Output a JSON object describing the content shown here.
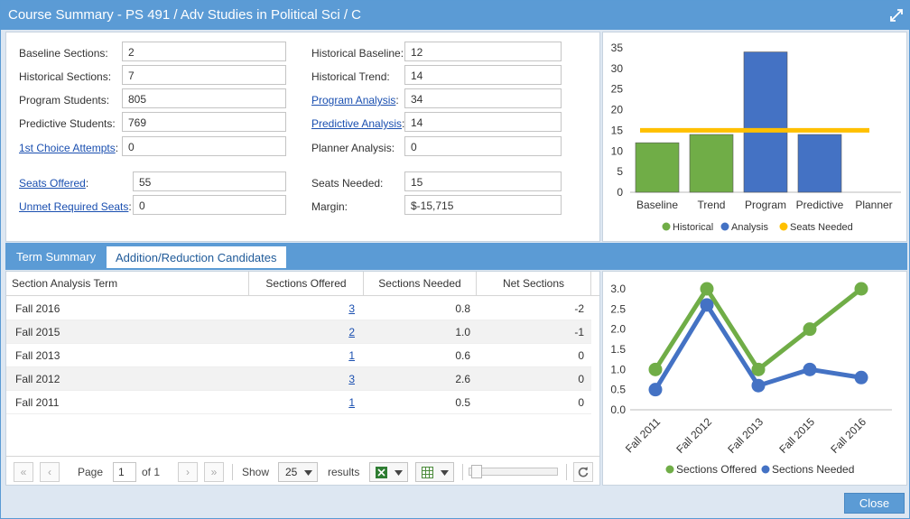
{
  "window": {
    "title": "Course Summary - PS 491 / Adv Studies in Political Sci / C"
  },
  "summary": {
    "left": [
      {
        "label": "Baseline Sections:",
        "value": "2",
        "link": false
      },
      {
        "label": "Historical Sections:",
        "value": "7",
        "link": false
      },
      {
        "label": "Program Students:",
        "value": "805",
        "link": false
      },
      {
        "label": "Predictive Students:",
        "value": "769",
        "link": false
      },
      {
        "label": "1st Choice Attempts",
        "value": "0",
        "link": true,
        "suffix": ":"
      },
      {
        "label": "Seats Offered",
        "value": "55",
        "link": true,
        "suffix": ":"
      },
      {
        "label": "Unmet Required Seats",
        "value": "0",
        "link": true,
        "suffix": ":"
      }
    ],
    "right": [
      {
        "label": "Historical Baseline:",
        "value": "12",
        "link": false
      },
      {
        "label": "Historical Trend:",
        "value": "14",
        "link": false
      },
      {
        "label": "Program Analysis",
        "value": "34",
        "link": true,
        "suffix": ":"
      },
      {
        "label": "Predictive Analysis",
        "value": "14",
        "link": true,
        "suffix": ":"
      },
      {
        "label": "Planner Analysis:",
        "value": "0",
        "link": false
      },
      {
        "label": "Seats Needed:",
        "value": "15",
        "link": false
      },
      {
        "label": "Margin:",
        "value": "$-15,715",
        "link": false
      }
    ]
  },
  "tabs": {
    "term_summary": "Term Summary",
    "candidates": "Addition/Reduction Candidates"
  },
  "grid": {
    "headers": [
      "Section Analysis Term",
      "Sections Offered",
      "Sections Needed",
      "Net Sections"
    ],
    "rows": [
      {
        "term": "Fall 2016",
        "offered": "3",
        "needed": "0.8",
        "net": "-2"
      },
      {
        "term": "Fall 2015",
        "offered": "2",
        "needed": "1.0",
        "net": "-1"
      },
      {
        "term": "Fall 2013",
        "offered": "1",
        "needed": "0.6",
        "net": "0"
      },
      {
        "term": "Fall 2012",
        "offered": "3",
        "needed": "2.6",
        "net": "0"
      },
      {
        "term": "Fall 2011",
        "offered": "1",
        "needed": "0.5",
        "net": "0"
      }
    ]
  },
  "pager": {
    "first": "«",
    "prev": "‹",
    "next": "›",
    "last": "»",
    "page_label": "Page",
    "page_value": "1",
    "of_label": "of 1",
    "show_label": "Show",
    "page_size": "25",
    "results_label": "results",
    "excel_icon": "excel-icon",
    "columns_icon": "columns-icon",
    "refresh_icon": "refresh-icon"
  },
  "close_label": "Close",
  "colors": {
    "accent": "#5b9bd5",
    "green": "#70ad47",
    "blue": "#4472c4",
    "gold": "#ffc000"
  },
  "chart_data": [
    {
      "type": "bar",
      "categories": [
        "Baseline",
        "Trend",
        "Program",
        "Predictive",
        "Planner"
      ],
      "values": [
        12,
        14,
        34,
        14,
        0
      ],
      "category_series": [
        "Historical",
        "Historical",
        "Analysis",
        "Analysis",
        "Analysis"
      ],
      "reference_line": {
        "name": "Seats Needed",
        "value": 15
      },
      "ylim": [
        0,
        35
      ],
      "yticks": [
        0,
        5,
        10,
        15,
        20,
        25,
        30,
        35
      ],
      "legend": [
        "Historical",
        "Analysis",
        "Seats Needed"
      ],
      "legend_position": "bottom"
    },
    {
      "type": "line",
      "categories": [
        "Fall 2011",
        "Fall 2012",
        "Fall 2013",
        "Fall 2015",
        "Fall 2016"
      ],
      "series": [
        {
          "name": "Sections Offered",
          "values": [
            1,
            3,
            1,
            2,
            3
          ]
        },
        {
          "name": "Sections Needed",
          "values": [
            0.5,
            2.6,
            0.6,
            1.0,
            0.8
          ]
        }
      ],
      "ylim": [
        0,
        3
      ],
      "yticks": [
        "0.0",
        "0.5",
        "1.0",
        "1.5",
        "2.0",
        "2.5",
        "3.0"
      ],
      "legend_position": "bottom"
    }
  ]
}
